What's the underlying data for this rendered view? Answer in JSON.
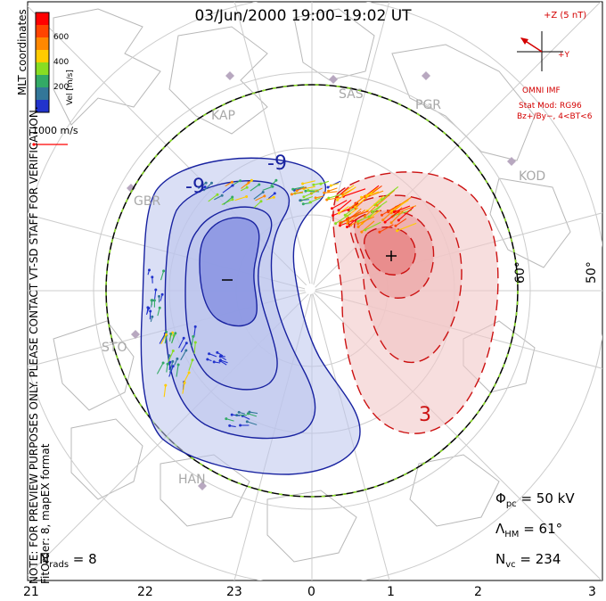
{
  "title": "03/Jun/2000 19:00–19:02 UT",
  "sidebar": {
    "coords": "MLT coordinates",
    "note": "NOTE: FOR PREVIEW PURPOSES ONLY. PLEASE CONTACT VT-SD STAFF FOR VERIFICATION.",
    "fit": "FitOrder: 8, mapEX format"
  },
  "colorbar": {
    "label": "Vel [m/s]",
    "ticks": [
      "600",
      "400",
      "200"
    ],
    "colors": [
      "#ff0000",
      "#ff4400",
      "#ff8800",
      "#ffcc00",
      "#88dd22",
      "#33aa66",
      "#337799",
      "#2233cc"
    ]
  },
  "scale_vector_label": "1000 m/s",
  "imf": {
    "bz_label": "+Z (5 nT)",
    "by_label": "+Y",
    "title": "OMNI IMF",
    "stat_mod": "Stat Mod: RG96",
    "bt_range": "Bz+/By−, 4<BT<6"
  },
  "stats": {
    "phi_pc": "50 kV",
    "lambda_hm": "61°",
    "n_vc": "234",
    "n_rads": "8"
  },
  "stations": [
    "KAP",
    "SAS",
    "PGR",
    "KOD",
    "GBR",
    "STO",
    "HAN"
  ],
  "latitude_labels": [
    "60°",
    "50°"
  ],
  "mlt_labels": [
    "21",
    "22",
    "23",
    "0",
    "1",
    "2",
    "3"
  ],
  "chart_data": {
    "type": "polar potential map",
    "coordinates": "MLT",
    "potential_contours": {
      "negative_cell": [
        "-9"
      ],
      "positive_cell": [
        "3"
      ],
      "extrema_markers": [
        "+",
        "−"
      ]
    },
    "velocity_scale": {
      "min": 0,
      "max": 700,
      "unit": "m/s",
      "ticks": [
        200,
        400,
        600
      ]
    },
    "heppner_maynard_latitude_deg": 61,
    "cross_polar_cap_potential_kV": 50,
    "n_vectors": 234,
    "n_radars": 8
  }
}
